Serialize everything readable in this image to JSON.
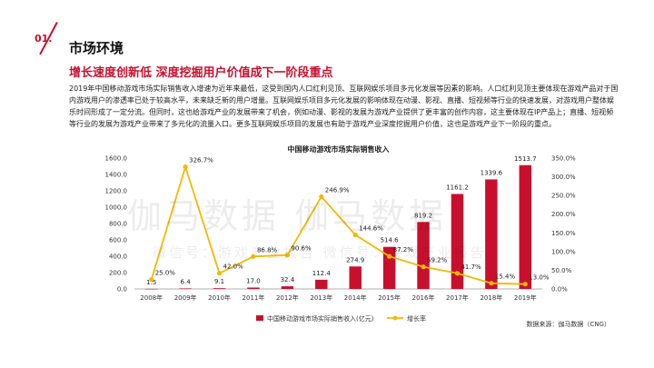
{
  "section": {
    "number": "01.",
    "title": "市场环境"
  },
  "headline": "增长速度创新低  深度挖掘用户价值成下一阶段重点",
  "body_text": "2019年中国移动游戏市场实际销售收入增速为近年来最低，这受到国内人口红利见顶、互联网娱乐项目多元化发展等因素的影响。人口红利见顶主要体现在游戏产品对于国内游戏用户的渗透率已处于较高水平，未来缺乏新的用户增量。互联网娱乐项目多元化发展的影响体现在动漫、影视、直播、短视频等行业的快速发展，对游戏用户整体娱乐时间形成了一定分流。但同时，这也给游戏产业的发展带来了机会，例如动漫、影视的发展为游戏产业提供了更丰富的创作内容，这主要体现在IP产品上；直播、短视频等行业的发展为游戏产业带来了多元化的流量入口。更多互联网娱乐项目的发展也有助于游戏产业深度挖掘用户价值，这也是游戏产业下一阶段的重点。",
  "watermark": {
    "main": "伽马数据   伽马数据",
    "sub": "微信号：游戏产业报告          微信号：游戏产业报告"
  },
  "source": "数据来源：伽马数据（CNG）",
  "chart_data": {
    "type": "bar",
    "title": "中国移动游戏市场实际销售收入",
    "categories": [
      "2008年",
      "2009年",
      "2010年",
      "2011年",
      "2012年",
      "2013年",
      "2014年",
      "2015年",
      "2016年",
      "2017年",
      "2018年",
      "2019年"
    ],
    "series": [
      {
        "name": "中国移动游戏市场实际销售收入(亿元)",
        "type": "bar",
        "axis": "left",
        "color": "#c8102e",
        "values": [
          1.5,
          6.4,
          9.1,
          17.0,
          32.4,
          112.4,
          274.9,
          514.6,
          819.2,
          1161.2,
          1339.6,
          1513.7
        ],
        "labels": [
          "1.5",
          "6.4",
          "9.1",
          "17.0",
          "32.4",
          "112.4",
          "274.9",
          "514.6",
          "819.2",
          "1161.2",
          "1339.6",
          "1513.7"
        ]
      },
      {
        "name": "增长率",
        "type": "line",
        "axis": "right",
        "color": "#f5b800",
        "values": [
          25.0,
          326.7,
          42.0,
          86.8,
          90.6,
          246.9,
          144.6,
          87.2,
          59.2,
          41.7,
          15.4,
          13.0
        ],
        "labels": [
          "25.0%",
          "326.7%",
          "42.0%",
          "86.8%",
          "90.6%",
          "246.9%",
          "144.6%",
          "87.2%",
          "59.2%",
          "41.7%",
          "15.4%",
          "13.0%"
        ]
      }
    ],
    "y_left": {
      "min": 0,
      "max": 1600,
      "ticks": [
        "0.0",
        "200.0",
        "400.0",
        "600.0",
        "800.0",
        "1000.0",
        "1200.0",
        "1400.0",
        "1600.0"
      ]
    },
    "y_right": {
      "min": 0,
      "max": 350,
      "ticks": [
        "0.0%",
        "50.0%",
        "100.0%",
        "150.0%",
        "200.0%",
        "250.0%",
        "300.0%",
        "350.0%"
      ]
    },
    "grid": false,
    "legend": "bottom"
  }
}
